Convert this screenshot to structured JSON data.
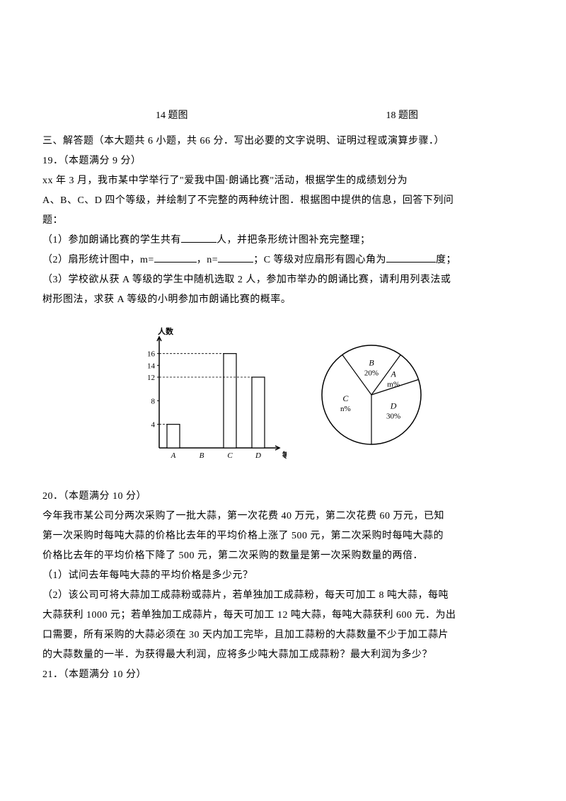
{
  "figure_labels": {
    "left": "14 题图",
    "right": "18 题图"
  },
  "section_header": "三、解答题（本大题共 6 小题，共 66 分．写出必要的文字说明、证明过程或演算步骤．）",
  "q19": {
    "header": "19．（本题满分 9 分）",
    "line1": "xx 年 3 月，我市某中学举行了\"爱我中国·朗诵比赛\"活动，根据学生的成绩划分为",
    "line2": "A、B、C、D 四个等级，并绘制了不完整的两种统计图．根据图中提供的信息，回答下列问",
    "line3": "题：",
    "sub1_a": "（1）参加朗诵比赛的学生共有",
    "sub1_b": "人，并把条形统计图补充完整理；",
    "sub2_a": "（2）扇形统计图中，m=",
    "sub2_b": "，n=",
    "sub2_c": "；C 等级对应扇形有圆心角为",
    "sub2_d": "度；",
    "sub3_a": "（3）学校欲从获 A 等级的学生中随机选取 2 人，参加市举办的朗诵比赛，请利用列表法或",
    "sub3_b": "树形图法，求获 A 等级的小明参加市朗诵比赛的概率。"
  },
  "bar_chart": {
    "y_label": "人数",
    "x_label": "等级",
    "y_ticks": [
      4,
      8,
      12,
      14,
      16
    ],
    "y_max": 18,
    "categories": [
      "A",
      "B",
      "C",
      "D"
    ],
    "values": [
      4,
      null,
      16,
      12
    ],
    "bar_color": "#ffffff",
    "bar_stroke": "#000000",
    "axis_color": "#000000",
    "font_size": 11
  },
  "pie_chart": {
    "slices": [
      {
        "label": "C",
        "sublabel": "n%",
        "start_angle": 180,
        "sweep": 144
      },
      {
        "label": "B",
        "sublabel": "20%",
        "start_angle": 324,
        "sweep": 72
      },
      {
        "label": "A",
        "sublabel": "m%",
        "start_angle": 36,
        "sweep": 36
      },
      {
        "label": "D",
        "sublabel": "30%",
        "start_angle": 72,
        "sweep": 108
      }
    ],
    "stroke": "#000000",
    "fill": "#ffffff",
    "font_size": 12
  },
  "q20": {
    "header": "20．（本题满分 10 分）",
    "line1": "今年我市某公司分两次采购了一批大蒜，第一次花费 40 万元，第二次花费 60 万元，已知",
    "line2": "第一次采购时每吨大蒜的价格比去年的平均价格上涨了 500 元，第二次采购时每吨大蒜的",
    "line3": "价格比去年的平均价格下降了 500 元，第二次采购的数量是第一次采购数量的两倍．",
    "sub1": "（1）试问去年每吨大蒜的平均价格是多少元？",
    "sub2_a": "（2）该公司可将大蒜加工成蒜粉或蒜片，若单独加工成蒜粉，每天可加工 8 吨大蒜，每吨",
    "sub2_b": "大蒜获利 1000 元；若单独加工成蒜片，每天可加工 12 吨大蒜，每吨大蒜获利 600 元．为出",
    "sub2_c": "口需要，所有采购的大蒜必须在 30 天内加工完毕，且加工蒜粉的大蒜数量不少于加工蒜片",
    "sub2_d": "的大蒜数量的一半．为获得最大利润，应将多少吨大蒜加工成蒜粉？最大利润为多少？"
  },
  "q21": {
    "header": "21．（本题满分 10 分）"
  }
}
